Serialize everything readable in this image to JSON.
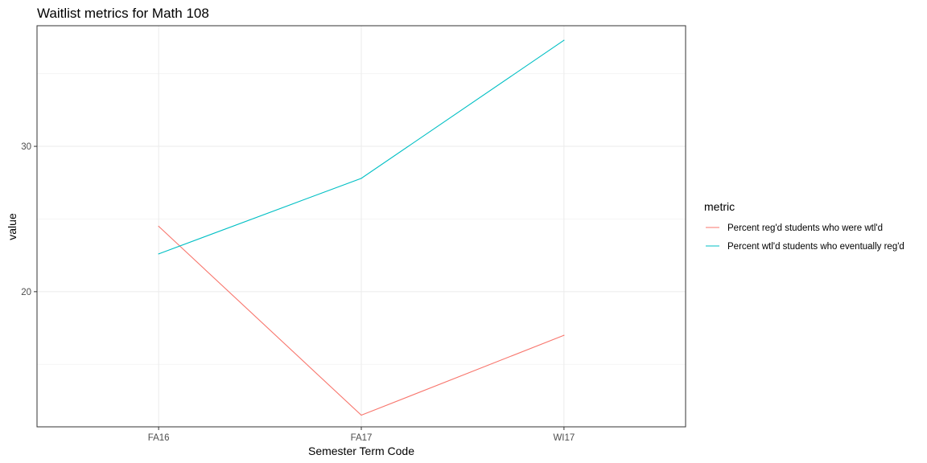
{
  "chart_data": {
    "type": "line",
    "title": "Waitlist metrics for Math 108",
    "xlabel": "Semester Term Code",
    "ylabel": "value",
    "categories": [
      "FA16",
      "FA17",
      "WI17"
    ],
    "yticks": [
      20,
      30
    ],
    "ylim": [
      10.7,
      38.3
    ],
    "grid": true,
    "legend": {
      "title": "metric",
      "position": "right"
    },
    "series": [
      {
        "name": "Percent reg'd students who were wtl'd",
        "color": "#F8766D",
        "values": [
          24.5,
          11.5,
          17.0
        ]
      },
      {
        "name": "Percent wtl'd students who eventually reg'd",
        "color": "#00BFC4",
        "values": [
          22.6,
          27.8,
          37.3
        ]
      }
    ]
  }
}
